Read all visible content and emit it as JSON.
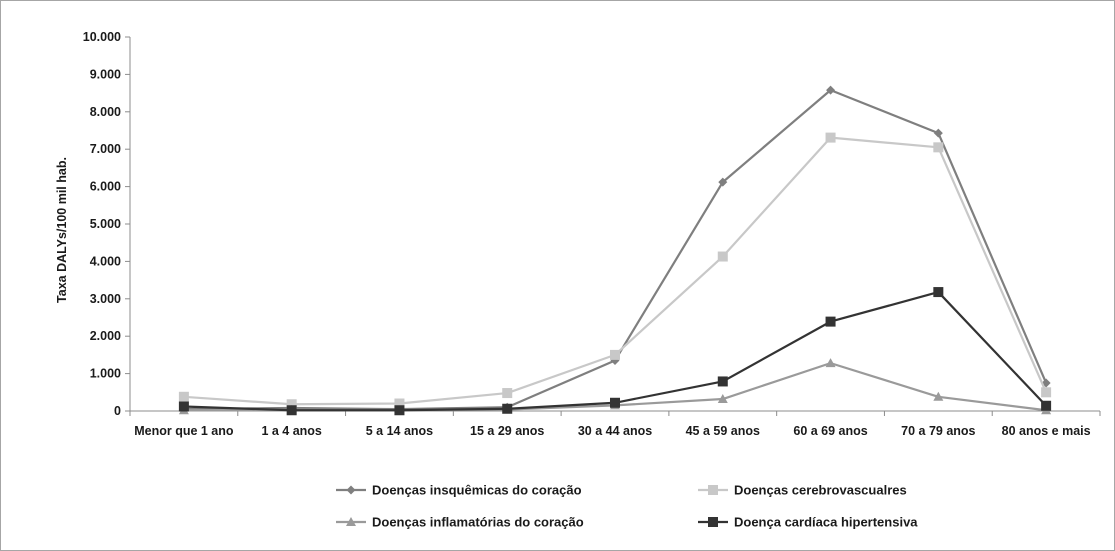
{
  "chart_data": {
    "type": "line",
    "title": "",
    "xlabel": "",
    "ylabel": "Taxa DALYs/100 mil hab.",
    "ylim": [
      0,
      10000
    ],
    "yticks": [
      "0",
      "1.000",
      "2.000",
      "3.000",
      "4.000",
      "5.000",
      "6.000",
      "7.000",
      "8.000",
      "9.000",
      "10.000"
    ],
    "grid": false,
    "legend_position": "bottom",
    "categories": [
      "Menor que 1 ano",
      "1 a 4 anos",
      "5 a 14 anos",
      "15 a 29 anos",
      "30 a 44 anos",
      "45 a 59 anos",
      "60 a 69 anos",
      "70 a 79 anos",
      "80 anos e mais"
    ],
    "series": [
      {
        "name": "Doenças insquêmicas do coração",
        "color": "#7f7f7f",
        "marker": "diamond",
        "values": [
          50,
          80,
          50,
          100,
          1350,
          6120,
          8580,
          7430,
          750
        ]
      },
      {
        "name": "Doenças cerebrovascualres",
        "color": "#c8c8c8",
        "marker": "square",
        "values": [
          380,
          180,
          200,
          480,
          1500,
          4130,
          7310,
          7050,
          500
        ]
      },
      {
        "name": "Doenças inflamatórias do coração",
        "color": "#9a9a9a",
        "marker": "triangle",
        "values": [
          20,
          30,
          20,
          40,
          150,
          320,
          1280,
          380,
          20
        ]
      },
      {
        "name": "Doença cardíaca hipertensiva",
        "color": "#333333",
        "marker": "square",
        "values": [
          120,
          20,
          20,
          60,
          220,
          790,
          2390,
          3180,
          140
        ]
      }
    ]
  }
}
